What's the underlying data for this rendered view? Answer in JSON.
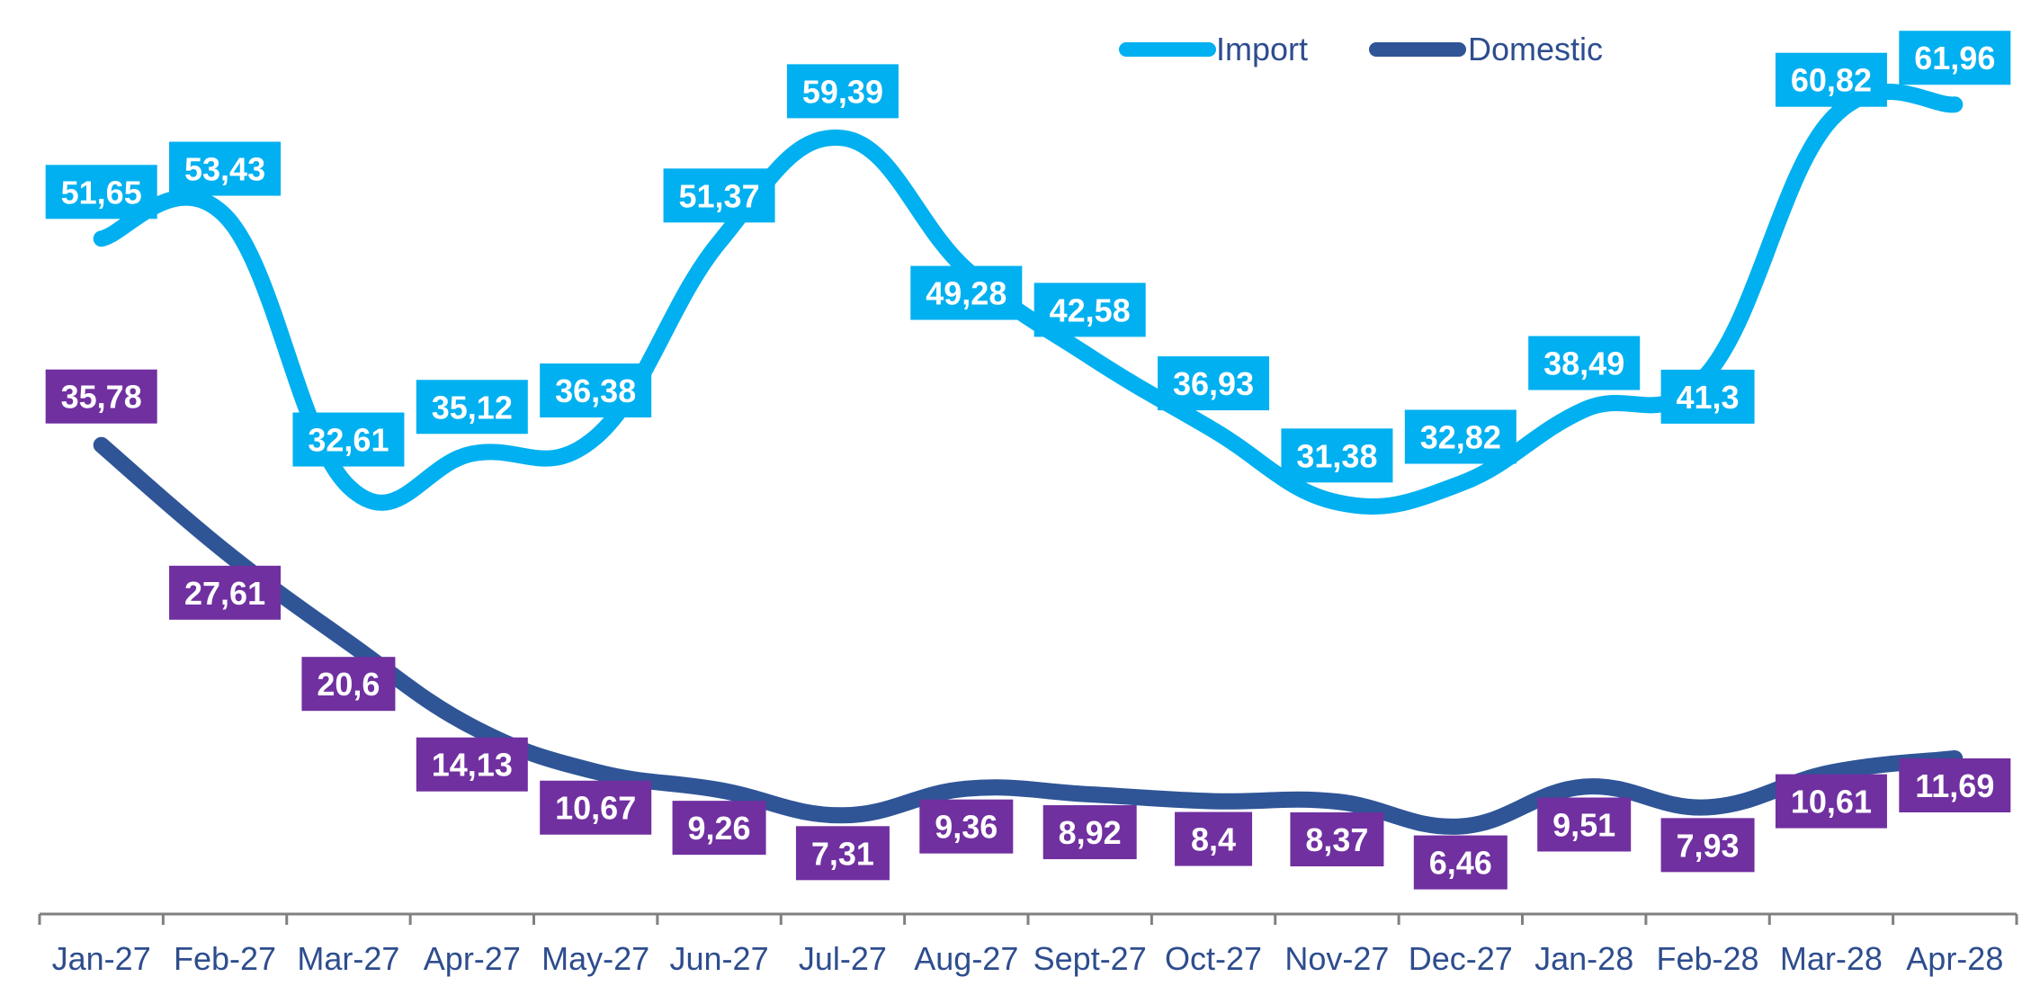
{
  "chart_data": {
    "type": "line",
    "categories": [
      "Jan-27",
      "Feb-27",
      "Mar-27",
      "Apr-27",
      "May-27",
      "Jun-27",
      "Jul-27",
      "Aug-27",
      "Sept-27",
      "Oct-27",
      "Nov-27",
      "Dec-27",
      "Jan-28",
      "Feb-28",
      "Mar-28",
      "Apr-28"
    ],
    "series": [
      {
        "name": "Import",
        "color": "#00b0f0",
        "label_color": "#00b0f0",
        "values": [
          51.65,
          53.43,
          32.61,
          35.12,
          36.38,
          51.37,
          59.39,
          49.28,
          42.58,
          36.93,
          31.38,
          32.82,
          38.49,
          41.3,
          60.82,
          61.96
        ],
        "labels": [
          "51,65",
          "53,43",
          "32,61",
          "35,12",
          "36,38",
          "51,37",
          "59,39",
          "49,28",
          "42,58",
          "36,93",
          "31,38",
          "32,82",
          "38,49",
          "41,3",
          "60,82",
          "61,96"
        ]
      },
      {
        "name": "Domestic",
        "color": "#2f5597",
        "label_color": "#7030a0",
        "values": [
          35.78,
          27.61,
          20.6,
          14.13,
          10.67,
          9.26,
          7.31,
          9.36,
          8.92,
          8.4,
          8.37,
          6.46,
          9.51,
          7.93,
          10.61,
          11.69
        ],
        "labels": [
          "35,78",
          "27,61",
          "20,6",
          "14,13",
          "10,67",
          "9,26",
          "7,31",
          "9,36",
          "8,92",
          "8,4",
          "8,37",
          "6,46",
          "9,51",
          "7,93",
          "10,61",
          "11,69"
        ]
      }
    ],
    "title": "",
    "xlabel": "",
    "ylabel": "",
    "ylim": [
      0,
      70
    ],
    "grid": false,
    "legend": "top-center",
    "axis_color": "#808080",
    "tick_color": "#2e4d8e"
  }
}
